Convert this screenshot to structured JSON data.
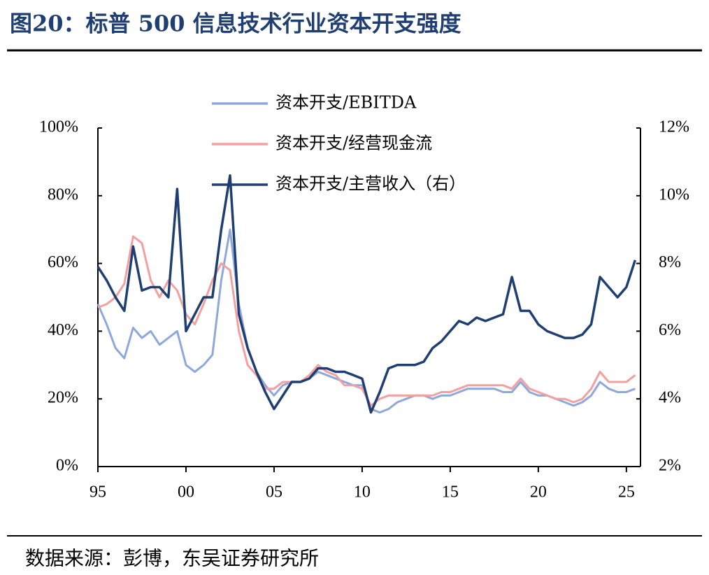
{
  "chart_data": {
    "type": "line",
    "title": "图20：标普 500 信息技术行业资本开支强度",
    "source": "数据来源：彭博，东吴证券研究所",
    "x": [
      1995,
      1995.5,
      1996,
      1996.5,
      1997,
      1997.5,
      1998,
      1998.5,
      1999,
      1999.5,
      2000,
      2000.5,
      2001,
      2001.5,
      2002,
      2002.5,
      2003,
      2003.5,
      2004,
      2004.5,
      2005,
      2005.5,
      2006,
      2006.5,
      2007,
      2007.5,
      2008,
      2008.5,
      2009,
      2009.5,
      2010,
      2010.5,
      2011,
      2011.5,
      2012,
      2012.5,
      2013,
      2013.5,
      2014,
      2014.5,
      2015,
      2015.5,
      2016,
      2016.5,
      2017,
      2017.5,
      2018,
      2018.5,
      2019,
      2019.5,
      2020,
      2020.5,
      2021,
      2021.5,
      2022,
      2022.5,
      2023,
      2023.5,
      2024,
      2024.5,
      2025,
      2025.5
    ],
    "xlim": [
      1995,
      2025.8
    ],
    "xticks": [
      {
        "value": 1995,
        "label": "95"
      },
      {
        "value": 2000,
        "label": "00"
      },
      {
        "value": 2005,
        "label": "05"
      },
      {
        "value": 2010,
        "label": "10"
      },
      {
        "value": 2015,
        "label": "15"
      },
      {
        "value": 2020,
        "label": "20"
      },
      {
        "value": 2025,
        "label": "25"
      }
    ],
    "ylim": [
      0,
      100
    ],
    "yticks": [
      {
        "value": 0,
        "label": "0%"
      },
      {
        "value": 20,
        "label": "20%"
      },
      {
        "value": 40,
        "label": "40%"
      },
      {
        "value": 60,
        "label": "60%"
      },
      {
        "value": 80,
        "label": "80%"
      },
      {
        "value": 100,
        "label": "100%"
      }
    ],
    "y2lim": [
      2,
      12
    ],
    "y2ticks": [
      {
        "value": 2,
        "label": "2%"
      },
      {
        "value": 4,
        "label": "4%"
      },
      {
        "value": 6,
        "label": "6%"
      },
      {
        "value": 8,
        "label": "8%"
      },
      {
        "value": 10,
        "label": "10%"
      },
      {
        "value": 12,
        "label": "12%"
      }
    ],
    "series": [
      {
        "name": "资本开支/EBITDA",
        "color": "#8fa8dc",
        "values": [
          48,
          42,
          35,
          32,
          41,
          38,
          40,
          36,
          38,
          40,
          30,
          28,
          30,
          33,
          55,
          70,
          48,
          35,
          28,
          24,
          21,
          24,
          25,
          25,
          26,
          28,
          27,
          26,
          25,
          24,
          24,
          17,
          16,
          17,
          19,
          20,
          21,
          21,
          20,
          21,
          21,
          22,
          23,
          23,
          23,
          23,
          22,
          22,
          25,
          22,
          21,
          21,
          20,
          19,
          18,
          19,
          21,
          25,
          23,
          22,
          22,
          23
        ]
      },
      {
        "name": "资本开支/经营现金流",
        "color": "#f4a0a0",
        "values": [
          47,
          48,
          50,
          54,
          68,
          66,
          55,
          50,
          55,
          52,
          45,
          42,
          48,
          55,
          60,
          58,
          40,
          30,
          27,
          23,
          23,
          25,
          25,
          25,
          27,
          30,
          28,
          27,
          24,
          24,
          23,
          18,
          20,
          21,
          21,
          21,
          21,
          21,
          21,
          22,
          22,
          23,
          24,
          24,
          24,
          24,
          24,
          23,
          26,
          23,
          22,
          21,
          20,
          20,
          19,
          20,
          23,
          28,
          25,
          25,
          25,
          27
        ]
      },
      {
        "name": "资本开支/主营收入（右）",
        "color": "#1f3f73",
        "axis": "y2",
        "values": [
          7.9,
          7.5,
          7.0,
          6.6,
          8.5,
          7.2,
          7.3,
          7.3,
          7.0,
          10.2,
          6.0,
          6.5,
          7.0,
          7.0,
          9.0,
          10.6,
          6.5,
          5.5,
          4.8,
          4.2,
          3.7,
          4.1,
          4.5,
          4.5,
          4.6,
          4.9,
          4.9,
          4.8,
          4.8,
          4.7,
          4.6,
          3.6,
          4.2,
          4.9,
          5.0,
          5.0,
          5.0,
          5.1,
          5.5,
          5.7,
          6.0,
          6.3,
          6.2,
          6.4,
          6.3,
          6.4,
          6.5,
          7.6,
          6.6,
          6.6,
          6.2,
          6.0,
          5.9,
          5.8,
          5.8,
          5.9,
          6.2,
          7.6,
          7.3,
          7.0,
          7.3,
          8.1
        ]
      }
    ]
  }
}
